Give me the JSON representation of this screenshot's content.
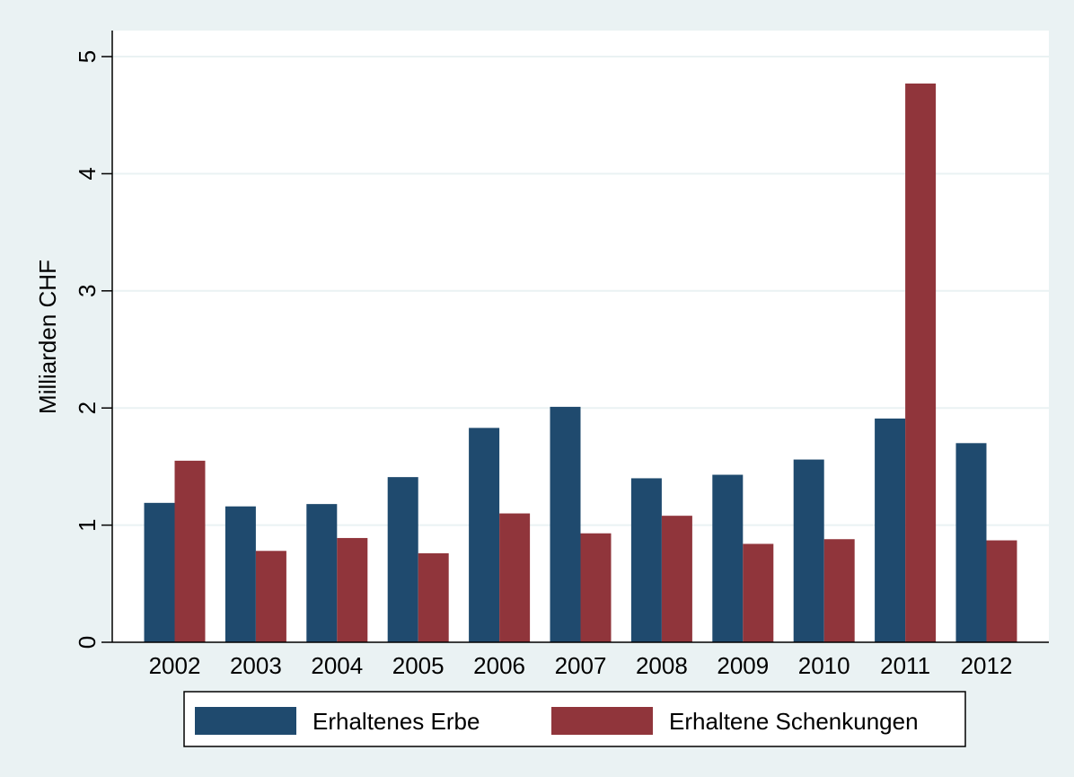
{
  "chart_data": {
    "type": "bar",
    "categories": [
      "2002",
      "2003",
      "2004",
      "2005",
      "2006",
      "2007",
      "2008",
      "2009",
      "2010",
      "2011",
      "2012"
    ],
    "series": [
      {
        "name": "Erhaltenes Erbe",
        "color": "#1f4a6e",
        "values": [
          1.19,
          1.16,
          1.18,
          1.41,
          1.83,
          2.01,
          1.4,
          1.43,
          1.56,
          1.91,
          1.7
        ]
      },
      {
        "name": "Erhaltene Schenkungen",
        "color": "#90353b",
        "values": [
          1.55,
          0.78,
          0.89,
          0.76,
          1.1,
          0.93,
          1.08,
          0.84,
          0.88,
          4.77,
          0.87
        ]
      }
    ],
    "title": "",
    "xlabel": "",
    "ylabel": "Milliarden CHF",
    "ylim": [
      0,
      5
    ],
    "yticks": [
      "0",
      "1",
      "2",
      "3",
      "4",
      "5"
    ],
    "grid": true,
    "legend_position": "bottom",
    "colors": {
      "outer_background": "#eaf2f3",
      "plot_background": "#ffffff",
      "gridline": "#eaf2f3"
    }
  }
}
